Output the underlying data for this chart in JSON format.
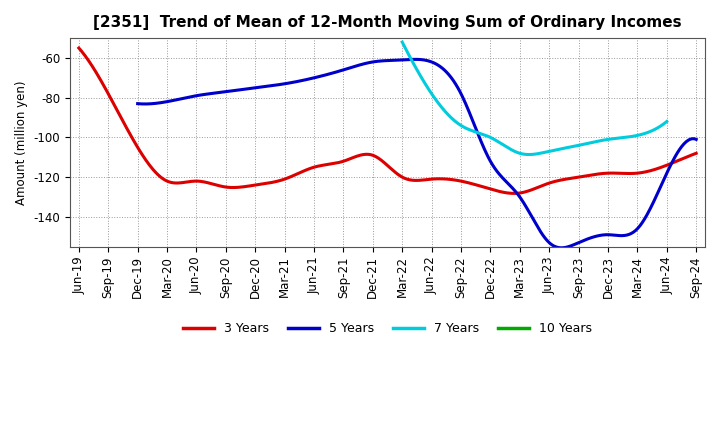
{
  "title": "[2351]  Trend of Mean of 12-Month Moving Sum of Ordinary Incomes",
  "ylabel": "Amount (million yen)",
  "background_color": "#ffffff",
  "grid_color": "#999999",
  "ylim": [
    -155,
    -50
  ],
  "yticks": [
    -140,
    -120,
    -100,
    -80,
    -60
  ],
  "x_labels": [
    "Jun-19",
    "Sep-19",
    "Dec-19",
    "Mar-20",
    "Jun-20",
    "Sep-20",
    "Dec-20",
    "Mar-21",
    "Jun-21",
    "Sep-21",
    "Dec-21",
    "Mar-22",
    "Jun-22",
    "Sep-22",
    "Dec-22",
    "Mar-23",
    "Jun-23",
    "Sep-23",
    "Dec-23",
    "Mar-24",
    "Jun-24",
    "Sep-24"
  ],
  "series_3y": {
    "color": "#dd0000",
    "linewidth": 2.2,
    "label": "3 Years",
    "x": [
      0,
      1,
      2,
      3,
      4,
      5,
      6,
      7,
      8,
      9,
      10,
      11,
      12,
      13,
      14,
      15,
      16,
      17,
      18,
      19,
      20,
      21
    ],
    "y": [
      -55,
      -78,
      -105,
      -122,
      -122,
      -125,
      -124,
      -121,
      -115,
      -112,
      -109,
      -120,
      -121,
      -122,
      -126,
      -128,
      -123,
      -120,
      -118,
      -118,
      -114,
      -108
    ]
  },
  "series_5y": {
    "color": "#0000cc",
    "linewidth": 2.2,
    "label": "5 Years",
    "x": [
      2,
      3,
      4,
      5,
      6,
      7,
      8,
      9,
      10,
      11,
      12,
      13,
      14,
      15,
      16,
      17,
      18,
      19,
      20,
      21
    ],
    "y": [
      -83,
      -82,
      -79,
      -77,
      -75,
      -73,
      -70,
      -66,
      -62,
      -61,
      -62,
      -78,
      -112,
      -130,
      -153,
      -153,
      -149,
      -146,
      -118,
      -101
    ]
  },
  "series_7y": {
    "color": "#00ccdd",
    "linewidth": 2.2,
    "label": "7 Years",
    "x": [
      11,
      12,
      13,
      14,
      15,
      16,
      17,
      18,
      19,
      20
    ],
    "y": [
      -52,
      -78,
      -94,
      -100,
      -108,
      -107,
      -104,
      -101,
      -99,
      -92
    ]
  },
  "series_10y": {
    "color": "#00aa00",
    "linewidth": 2.2,
    "label": "10 Years",
    "x": [],
    "y": []
  },
  "title_fontsize": 11,
  "axis_fontsize": 8.5,
  "legend_fontsize": 9
}
